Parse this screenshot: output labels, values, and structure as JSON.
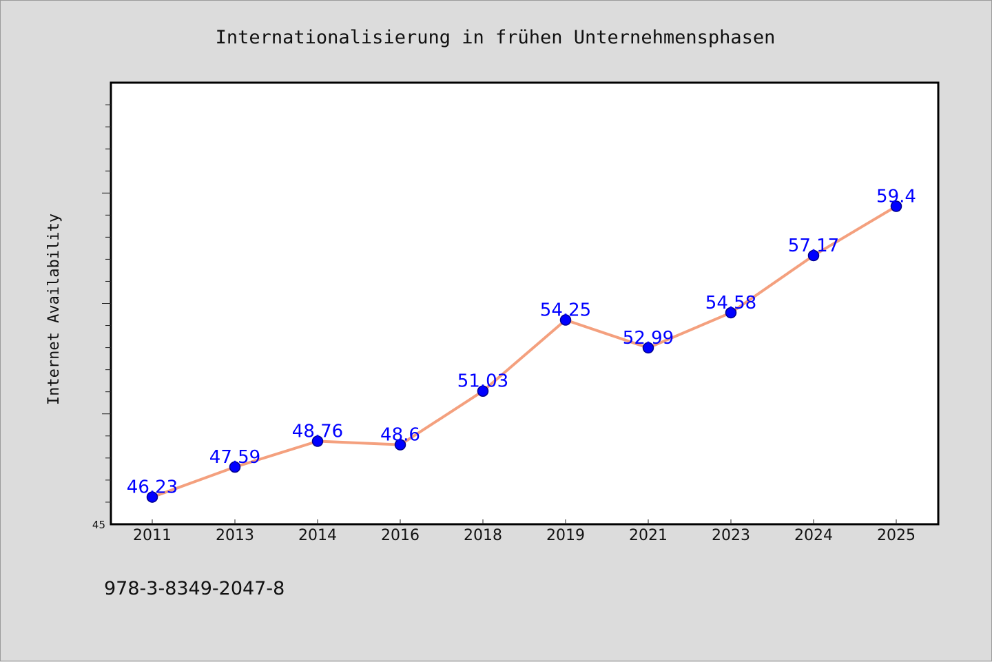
{
  "chart_data": {
    "type": "line",
    "title": "Internationalisierung in frühen Unternehmensphasen",
    "xlabel": "",
    "ylabel": "Internet Availability",
    "categories": [
      "2011",
      "2013",
      "2014",
      "2016",
      "2018",
      "2019",
      "2021",
      "2023",
      "2024",
      "2025"
    ],
    "series": [
      {
        "values": [
          46.23,
          47.59,
          48.76,
          48.6,
          51.03,
          54.25,
          52.99,
          54.58,
          57.17,
          59.4
        ]
      }
    ],
    "data_labels": [
      "46.23",
      "47.59",
      "48.76",
      "48.6",
      "51.03",
      "54.25",
      "52.99",
      "54.58",
      "57.17",
      "59.4"
    ],
    "ylim": [
      45,
      65
    ],
    "ytick_labels": [
      "45"
    ],
    "grid": false,
    "legend": "none",
    "colors": {
      "line": "#f4a07e",
      "marker_fill": "#0000ff",
      "marker_edge": "#00008b",
      "data_label": "#0000ff",
      "plot_background": "#ffffff",
      "figure_background": "#dcdcdc"
    }
  },
  "footer": {
    "isbn": "978-3-8349-2047-8"
  }
}
